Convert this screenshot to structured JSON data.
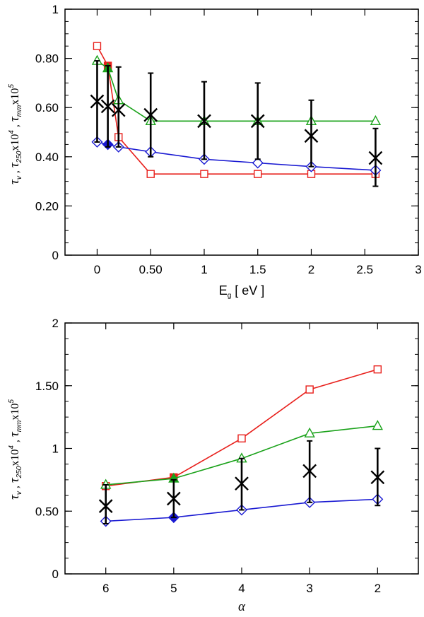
{
  "colors": {
    "red": "#e8201c",
    "green": "#1aa21a",
    "blue": "#1a1ad2",
    "black": "#000000"
  },
  "ylabel_parts": {
    "tau": "τ",
    "v": "v",
    "sep1": " ,  ",
    "tau250": "τ",
    "s250": "250",
    "x104": "x10",
    "e4": "4",
    "sep2": " ,  ",
    "taumm": "τ",
    "smm": "mm",
    "x105": "x10",
    "e5": "5"
  },
  "xlabel_top": {
    "E": "E",
    "g": "g",
    "unit": " [ eV ]"
  },
  "xlabel_bottom": "α",
  "chart_data": [
    {
      "type": "line",
      "title": "",
      "xlabel": "Eg [ eV ]",
      "ylabel": "τv , τ250x10^4 , τmmx10^5",
      "xlim": [
        -0.3,
        3.0
      ],
      "ylim": [
        0,
        1.0
      ],
      "xticks": [
        0,
        0.5,
        1,
        1.5,
        2,
        2.5,
        3
      ],
      "xtick_labels": [
        "0",
        "0.50",
        "1",
        "1.5",
        "2",
        "2.5",
        "3"
      ],
      "yticks": [
        0,
        0.2,
        0.4,
        0.6,
        0.8,
        1.0
      ],
      "ytick_labels": [
        "0",
        "0.20",
        "0.40",
        "0.60",
        "0.80",
        "1"
      ],
      "x": [
        0.0,
        0.1,
        0.2,
        0.5,
        1.0,
        1.5,
        2.0,
        2.6
      ],
      "series": [
        {
          "name": "tau_v (red squares)",
          "color": "red",
          "marker": "square",
          "values": [
            0.85,
            0.77,
            0.48,
            0.33,
            0.33,
            0.33,
            0.33,
            0.33
          ],
          "filled_index": 1
        },
        {
          "name": "tau_250 x10^4 (green triangles)",
          "color": "green",
          "marker": "triangle",
          "values": [
            0.79,
            0.76,
            0.63,
            0.545,
            0.545,
            0.545,
            0.545,
            0.545
          ],
          "filled_index": 1
        },
        {
          "name": "tau_mm x10^5 (blue diamonds)",
          "color": "blue",
          "marker": "diamond",
          "values": [
            0.46,
            0.45,
            0.44,
            0.42,
            0.39,
            0.375,
            0.36,
            0.345
          ],
          "filled_index": 1
        }
      ],
      "observed": {
        "x": [
          0.0,
          0.1,
          0.2,
          0.5,
          1.0,
          1.5,
          2.0,
          2.6
        ],
        "values": [
          0.625,
          0.605,
          0.59,
          0.57,
          0.545,
          0.545,
          0.485,
          0.395
        ],
        "err_low": [
          0.46,
          0.44,
          0.44,
          0.4,
          0.39,
          0.39,
          0.36,
          0.28
        ],
        "err_high": [
          0.79,
          0.77,
          0.765,
          0.74,
          0.705,
          0.7,
          0.63,
          0.515
        ]
      }
    },
    {
      "type": "line",
      "title": "",
      "xlabel": "α",
      "ylabel": "τv , τ250x10^4 , τmmx10^5",
      "xlim": [
        6.6,
        1.4
      ],
      "ylim": [
        0,
        2.0
      ],
      "xticks": [
        6,
        5,
        4,
        3,
        2
      ],
      "xtick_labels": [
        "6",
        "5",
        "4",
        "3",
        "2"
      ],
      "yticks": [
        0,
        0.5,
        1.0,
        1.5,
        2.0
      ],
      "ytick_labels": [
        "0",
        "0.50",
        "1",
        "1.50",
        "2"
      ],
      "x": [
        6,
        5,
        4,
        3,
        2
      ],
      "series": [
        {
          "name": "tau_v (red squares)",
          "color": "red",
          "marker": "square",
          "values": [
            0.7,
            0.77,
            1.08,
            1.47,
            1.63
          ],
          "filled_index": 1
        },
        {
          "name": "tau_250 x10^4 (green triangles)",
          "color": "green",
          "marker": "triangle",
          "values": [
            0.71,
            0.76,
            0.92,
            1.12,
            1.18
          ],
          "filled_index": 1
        },
        {
          "name": "tau_mm x10^5 (blue diamonds)",
          "color": "blue",
          "marker": "diamond",
          "values": [
            0.42,
            0.45,
            0.51,
            0.57,
            0.595
          ],
          "filled_index": 1
        }
      ],
      "observed": {
        "x": [
          6,
          5,
          4,
          3,
          2
        ],
        "values": [
          0.54,
          0.6,
          0.72,
          0.82,
          0.77
        ],
        "err_low": [
          0.4,
          0.45,
          0.51,
          0.57,
          0.545
        ],
        "err_high": [
          0.71,
          0.75,
          0.92,
          1.06,
          1.0
        ]
      }
    }
  ]
}
